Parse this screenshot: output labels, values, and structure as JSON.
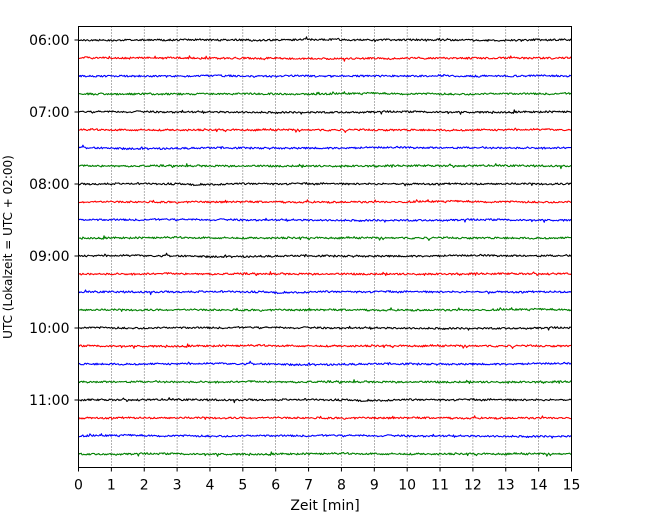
{
  "chart_data": {
    "type": "line",
    "title": "",
    "xlabel": "Zeit  [min]",
    "ylabel": "UTC (Lokalzeit = UTC + 02:00)",
    "xlim": [
      0,
      15
    ],
    "x_ticks": [
      "0",
      "1",
      "2",
      "3",
      "4",
      "5",
      "6",
      "7",
      "8",
      "9",
      "10",
      "11",
      "12",
      "13",
      "14",
      "15"
    ],
    "y_ticks": [
      "06:00",
      "07:00",
      "08:00",
      "09:00",
      "10:00",
      "11:00"
    ],
    "grid": "vertical dotted",
    "legend": "none",
    "trace_colors": [
      "#000000",
      "#ff0000",
      "#0000ff",
      "#008000"
    ],
    "traces_per_hour": 4,
    "minutes_per_trace": 15,
    "series": [
      {
        "start": "06:00",
        "color": "#000000"
      },
      {
        "start": "06:15",
        "color": "#ff0000"
      },
      {
        "start": "06:30",
        "color": "#0000ff"
      },
      {
        "start": "06:45",
        "color": "#008000"
      },
      {
        "start": "07:00",
        "color": "#000000"
      },
      {
        "start": "07:15",
        "color": "#ff0000"
      },
      {
        "start": "07:30",
        "color": "#0000ff"
      },
      {
        "start": "07:45",
        "color": "#008000"
      },
      {
        "start": "08:00",
        "color": "#000000"
      },
      {
        "start": "08:15",
        "color": "#ff0000"
      },
      {
        "start": "08:30",
        "color": "#0000ff"
      },
      {
        "start": "08:45",
        "color": "#008000"
      },
      {
        "start": "09:00",
        "color": "#000000"
      },
      {
        "start": "09:15",
        "color": "#ff0000"
      },
      {
        "start": "09:30",
        "color": "#0000ff"
      },
      {
        "start": "09:45",
        "color": "#008000"
      },
      {
        "start": "10:00",
        "color": "#000000"
      },
      {
        "start": "10:15",
        "color": "#ff0000"
      },
      {
        "start": "10:30",
        "color": "#0000ff"
      },
      {
        "start": "10:45",
        "color": "#008000"
      },
      {
        "start": "11:00",
        "color": "#000000"
      },
      {
        "start": "11:15",
        "color": "#ff0000"
      },
      {
        "start": "11:30",
        "color": "#0000ff"
      },
      {
        "start": "11:45",
        "color": "#008000"
      }
    ]
  }
}
